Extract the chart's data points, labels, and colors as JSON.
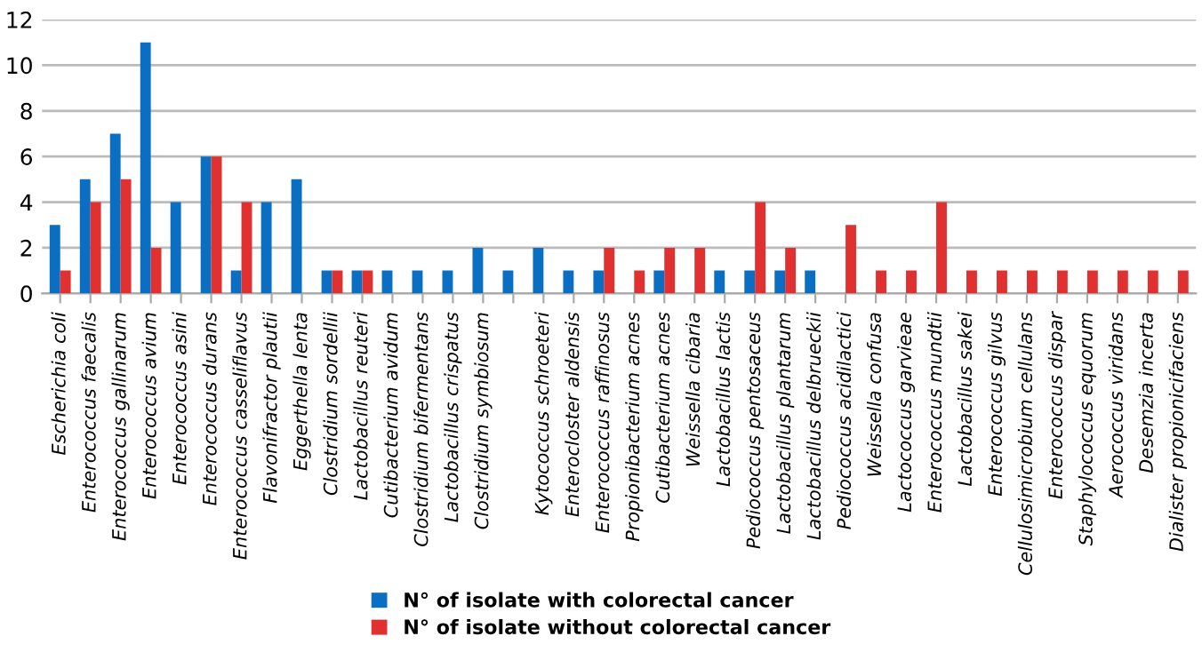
{
  "chart_data": {
    "type": "bar",
    "categories": [
      "Escherichia coli",
      "Enterococcus faecalis",
      "Enterococcus gallinarum",
      "Enterococcus avium",
      "Enterococcus asini",
      "Enterococcus durans",
      "Enterococcus casseliflavus",
      "Flavonifractor plautii",
      "Eggerthella lenta",
      "Clostridium sordellii",
      "Lactobacillus reuteri",
      "Cutibacterium avidum",
      "Clostridium bifermentans",
      "Lactobacillus crispatus",
      "Clostridium symbiosum",
      null,
      "Kytococcus schroeteri",
      "Enterocloster aldensis",
      "Enterococcus raffinosus",
      "Propionibacterium acnes",
      "Cutibacterium acnes",
      "Weissella cibaria",
      "Lactobacillus lactis",
      "Pediococcus pentosaceus",
      "Lactobacillus plantarum",
      "Lactobacillus delbrueckii",
      "Pediococcus acidilactici",
      "Weissella confusa",
      "Lactococcus garvieae",
      "Enterococcus mundtii",
      "Lactobacillus sakei",
      "Enterococcus gilvus",
      "Cellulosimicrobium cellulans",
      "Enterococcus dispar",
      "Staphylococcus equorum",
      "Aerococcus viridans",
      "Desemzia incerta",
      "Dialister propionicifaciens"
    ],
    "series": [
      {
        "name": "N° of isolate with colorectal cancer",
        "color": "#0a6fc2",
        "values": [
          3,
          5,
          7,
          11,
          4,
          6,
          1,
          4,
          5,
          1,
          1,
          1,
          1,
          1,
          2,
          1,
          2,
          1,
          1,
          0,
          1,
          0,
          1,
          1,
          1,
          1,
          0,
          0,
          0,
          0,
          0,
          0,
          0,
          0,
          0,
          0,
          0,
          0
        ]
      },
      {
        "name": "N° of isolate without colorectal cancer",
        "color": "#e03030",
        "values": [
          1,
          4,
          5,
          2,
          0,
          6,
          4,
          0,
          0,
          1,
          1,
          0,
          0,
          0,
          0,
          0,
          0,
          0,
          2,
          1,
          2,
          2,
          0,
          4,
          2,
          0,
          3,
          1,
          1,
          4,
          1,
          1,
          1,
          1,
          1,
          1,
          1,
          1
        ]
      }
    ],
    "ylim": [
      0,
      12
    ],
    "yticks": [
      0,
      2,
      4,
      6,
      8,
      10,
      12
    ],
    "grid": "y",
    "legend": "bottom"
  }
}
